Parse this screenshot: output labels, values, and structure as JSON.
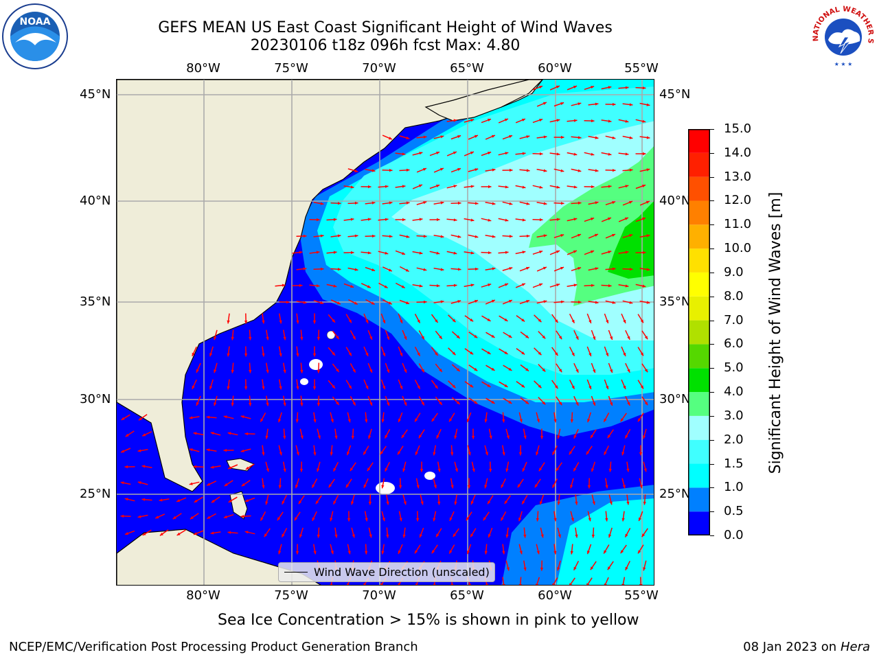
{
  "title": {
    "line1": "GEFS MEAN US East Coast Significant Height of Wind Waves",
    "line2": "20230106 t18z 096h fcst   Max: 4.80"
  },
  "map": {
    "lon_ticks": [
      "80°W",
      "75°W",
      "70°W",
      "65°W",
      "60°W",
      "55°W"
    ],
    "lat_ticks": [
      "45°N",
      "40°N",
      "35°N",
      "30°N",
      "25°N"
    ],
    "legend": "Wind Wave Direction (unscaled)",
    "colors": {
      "land": "#efedd9",
      "arrow": "#ff0000",
      "grid": "#aaaaaa"
    }
  },
  "colorbar": {
    "label": "Significant Height of Wind Waves [m]",
    "ticks": [
      "0.0",
      "0.5",
      "1.0",
      "1.5",
      "2.0",
      "3.0",
      "4.0",
      "5.0",
      "6.0",
      "7.0",
      "8.0",
      "9.0",
      "10.0",
      "11.0",
      "12.0",
      "13.0",
      "14.0",
      "15.0"
    ],
    "colors": [
      "#0000ff",
      "#0080ff",
      "#00ffff",
      "#40ffff",
      "#a0ffff",
      "#55ff80",
      "#00e000",
      "#55d800",
      "#b0e000",
      "#e8f000",
      "#ffff00",
      "#ffe000",
      "#ffb000",
      "#ff8000",
      "#ff5000",
      "#ff2000",
      "#ff0000"
    ]
  },
  "caption": "Sea Ice Concentration > 15% is shown in pink to yellow",
  "footer": {
    "left": "NCEP/EMC/Verification Post Processing Product Generation Branch",
    "right_date": "08 Jan 2023 on ",
    "right_host": "Hera"
  },
  "logos": {
    "noaa": "NOAA",
    "nws": "NATIONAL WEATHER SERVICE"
  }
}
